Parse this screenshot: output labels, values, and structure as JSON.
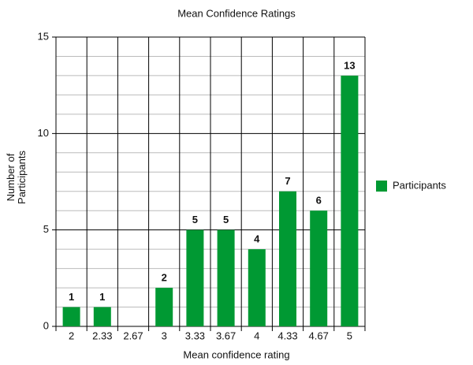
{
  "chart_data": {
    "type": "bar",
    "title": "Mean Confidence Ratings",
    "x_label": "Mean confidence rating",
    "y_label": "Number of Participants",
    "categories": [
      "2",
      "2.33",
      "2.67",
      "3",
      "3.33",
      "3.67",
      "4",
      "4.33",
      "4.67",
      "5"
    ],
    "series": [
      {
        "name": "Participants",
        "color": "#009933",
        "values": [
          1,
          1,
          0,
          2,
          5,
          5,
          4,
          7,
          6,
          13
        ]
      }
    ],
    "ylim": [
      0,
      15
    ],
    "yticks": [
      0,
      5,
      10,
      15
    ],
    "grid": true,
    "minor_grid": true,
    "legend": "right"
  }
}
